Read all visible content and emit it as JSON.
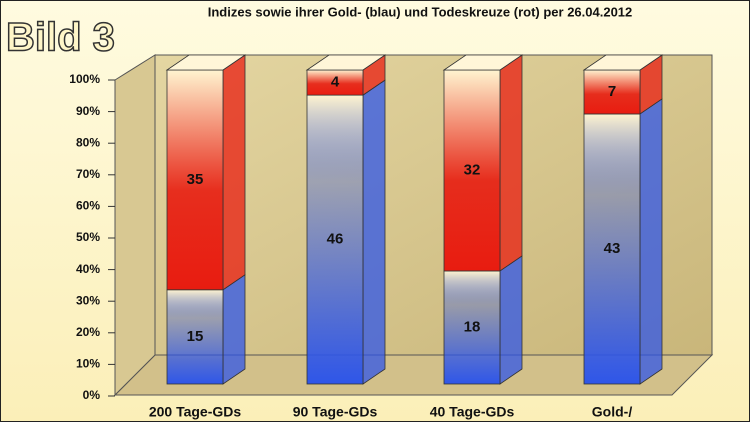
{
  "chart_data": {
    "type": "bar",
    "stacked": "percent",
    "title": "Indizes sowie ihrer Gold- (blau) und Todeskreuze (rot) per 26.04.2012",
    "overlay_label": "Bild 3",
    "categories": [
      "200 Tage-GDs",
      "90 Tage-GDs",
      "40 Tage-GDs",
      "Gold-/"
    ],
    "series": [
      {
        "color": "#2f56e8",
        "values": [
          15,
          46,
          18,
          43
        ]
      },
      {
        "color": "#e81c10",
        "values": [
          35,
          4,
          32,
          7
        ]
      }
    ],
    "ylim": [
      0,
      100
    ],
    "yticks": [
      {
        "value": 0,
        "label": "0%"
      },
      {
        "value": 10,
        "label": "10%"
      },
      {
        "value": 20,
        "label": "20%"
      },
      {
        "value": 30,
        "label": "30%"
      },
      {
        "value": 40,
        "label": "40%"
      },
      {
        "value": 50,
        "label": "50%"
      },
      {
        "value": 60,
        "label": "60%"
      },
      {
        "value": 70,
        "label": "70%"
      },
      {
        "value": 80,
        "label": "80%"
      },
      {
        "value": 90,
        "label": "90%"
      },
      {
        "value": 100,
        "label": "100%"
      }
    ],
    "grid": false
  }
}
